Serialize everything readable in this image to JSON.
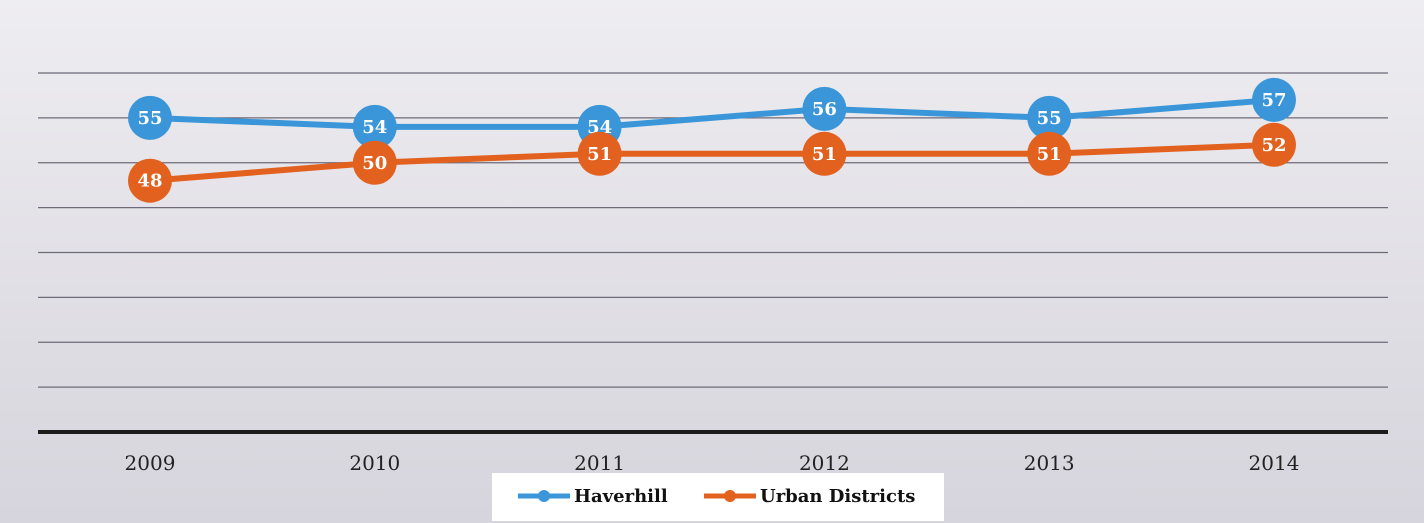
{
  "chart_data": {
    "type": "line",
    "categories": [
      "2009",
      "2010",
      "2011",
      "2012",
      "2013",
      "2014"
    ],
    "series": [
      {
        "name": "Haverhill",
        "values": [
          55,
          54,
          54,
          56,
          55,
          57
        ],
        "color": "#3a96d9"
      },
      {
        "name": "Urban Districts",
        "values": [
          48,
          50,
          51,
          51,
          51,
          52
        ],
        "color": "#e2611f"
      }
    ],
    "title": "",
    "xlabel": "",
    "ylabel": "",
    "ylim": [
      20,
      60
    ],
    "grid": true,
    "legend_position": "bottom-center",
    "data_labels": true
  }
}
